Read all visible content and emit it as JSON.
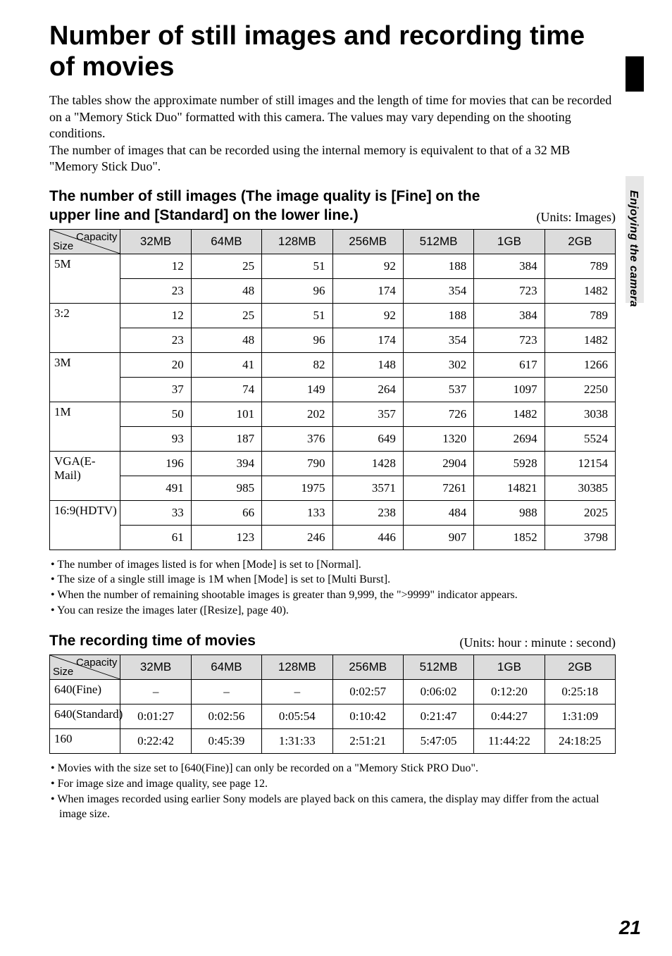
{
  "page_number": "21",
  "side_tab_text": "Enjoying the camera",
  "title": "Number of still images and recording time of movies",
  "intro_paragraph": "The tables show the approximate number of still images and the length of time for movies that can be recorded on a \"Memory Stick Duo\" formatted with this camera. The values may vary depending on the shooting conditions.\nThe number of images that can be recorded using the internal memory is equivalent to that of a 32 MB \"Memory Stick Duo\".",
  "section1": {
    "heading": "The number of still images (The image quality is [Fine] on the upper line and [Standard] on the lower line.)",
    "units": "(Units: Images)",
    "corner_capacity": "Capacity",
    "corner_size": "Size",
    "columns": [
      "32MB",
      "64MB",
      "128MB",
      "256MB",
      "512MB",
      "1GB",
      "2GB"
    ],
    "rows": [
      {
        "label": "5M",
        "fine": [
          "12",
          "25",
          "51",
          "92",
          "188",
          "384",
          "789"
        ],
        "std": [
          "23",
          "48",
          "96",
          "174",
          "354",
          "723",
          "1482"
        ]
      },
      {
        "label": "3:2",
        "fine": [
          "12",
          "25",
          "51",
          "92",
          "188",
          "384",
          "789"
        ],
        "std": [
          "23",
          "48",
          "96",
          "174",
          "354",
          "723",
          "1482"
        ]
      },
      {
        "label": "3M",
        "fine": [
          "20",
          "41",
          "82",
          "148",
          "302",
          "617",
          "1266"
        ],
        "std": [
          "37",
          "74",
          "149",
          "264",
          "537",
          "1097",
          "2250"
        ]
      },
      {
        "label": "1M",
        "fine": [
          "50",
          "101",
          "202",
          "357",
          "726",
          "1482",
          "3038"
        ],
        "std": [
          "93",
          "187",
          "376",
          "649",
          "1320",
          "2694",
          "5524"
        ]
      },
      {
        "label": "VGA(E-Mail)",
        "fine": [
          "196",
          "394",
          "790",
          "1428",
          "2904",
          "5928",
          "12154"
        ],
        "std": [
          "491",
          "985",
          "1975",
          "3571",
          "7261",
          "14821",
          "30385"
        ]
      },
      {
        "label": "16:9(HDTV)",
        "fine": [
          "33",
          "66",
          "133",
          "238",
          "484",
          "988",
          "2025"
        ],
        "std": [
          "61",
          "123",
          "246",
          "446",
          "907",
          "1852",
          "3798"
        ]
      }
    ],
    "bullets": [
      "The number of images listed is for when [Mode] is set to [Normal].",
      "The size of a single still image is 1M when [Mode] is set to [Multi Burst].",
      "When the number of remaining shootable images is greater than 9,999, the \">9999\" indicator appears.",
      "You can resize the images later ([Resize], page 40)."
    ]
  },
  "section2": {
    "heading": "The recording time of movies",
    "units": "(Units: hour : minute : second)",
    "corner_capacity": "Capacity",
    "corner_size": "Size",
    "columns": [
      "32MB",
      "64MB",
      "128MB",
      "256MB",
      "512MB",
      "1GB",
      "2GB"
    ],
    "rows": [
      {
        "label": "640(Fine)",
        "vals": [
          "–",
          "–",
          "–",
          "0:02:57",
          "0:06:02",
          "0:12:20",
          "0:25:18"
        ]
      },
      {
        "label": "640(Standard)",
        "vals": [
          "0:01:27",
          "0:02:56",
          "0:05:54",
          "0:10:42",
          "0:21:47",
          "0:44:27",
          "1:31:09"
        ]
      },
      {
        "label": "160",
        "vals": [
          "0:22:42",
          "0:45:39",
          "1:31:33",
          "2:51:21",
          "5:47:05",
          "11:44:22",
          "24:18:25"
        ]
      }
    ],
    "bullets": [
      "Movies with the size set to [640(Fine)] can only be recorded on a \"Memory Stick PRO Duo\".",
      "For image size and image quality, see page 12.",
      "When images recorded using earlier Sony models are played back on this camera, the display may differ from the actual image size."
    ]
  }
}
